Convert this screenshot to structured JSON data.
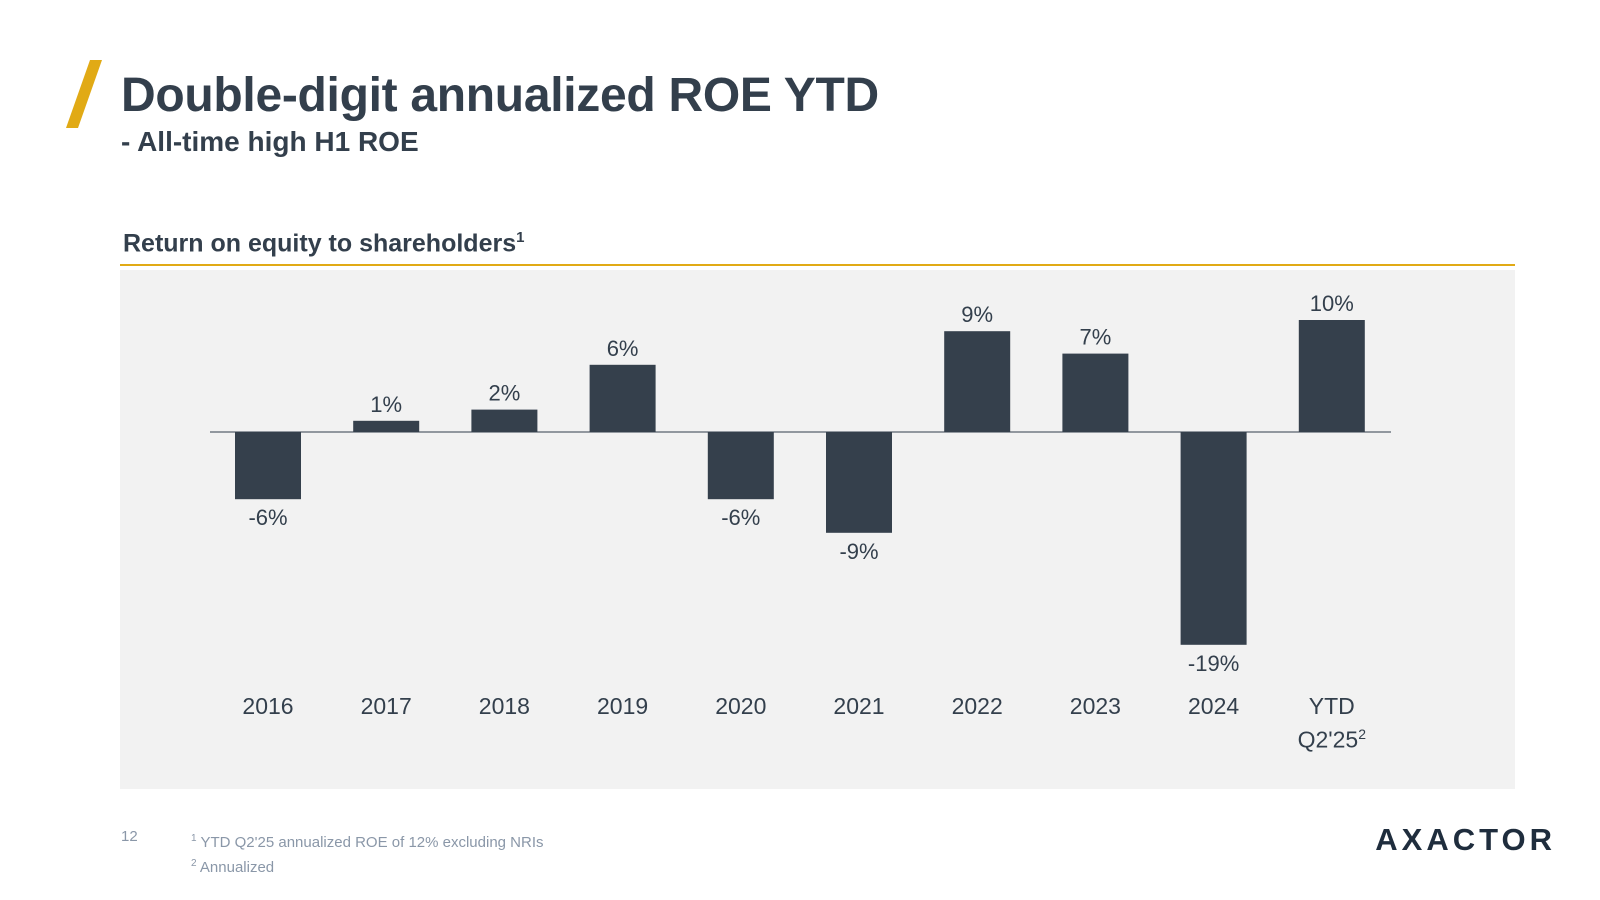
{
  "slide": {
    "title": "Double-digit annualized ROE YTD",
    "subtitle": "- All-time high H1 ROE",
    "page_number": "12",
    "logo_text": "AXACTOR",
    "accent_color": "#e1aa15",
    "bar_color": "#35404c"
  },
  "chart_heading": {
    "text": "Return on equity to shareholders",
    "sup": "1"
  },
  "footnotes": [
    {
      "num": "1",
      "text": "YTD Q2'25 annualized ROE of 12% excluding NRIs"
    },
    {
      "num": "2",
      "text": "Annualized"
    }
  ],
  "chart_data": {
    "type": "bar",
    "title": "Return on equity to shareholders",
    "categories": [
      "2016",
      "2017",
      "2018",
      "2019",
      "2020",
      "2021",
      "2022",
      "2023",
      "2024",
      "YTD Q2'25"
    ],
    "category_display": [
      {
        "line1": "2016"
      },
      {
        "line1": "2017"
      },
      {
        "line1": "2018"
      },
      {
        "line1": "2019"
      },
      {
        "line1": "2020"
      },
      {
        "line1": "2021"
      },
      {
        "line1": "2022"
      },
      {
        "line1": "2023"
      },
      {
        "line1": "2024"
      },
      {
        "line1": "YTD",
        "line2": "Q2'25",
        "sup": "2"
      }
    ],
    "values": [
      -6,
      1,
      2,
      6,
      -6,
      -9,
      9,
      7,
      -19,
      10
    ],
    "value_labels": [
      "-6%",
      "1%",
      "2%",
      "6%",
      "-6%",
      "-9%",
      "9%",
      "7%",
      "-19%",
      "10%"
    ],
    "unit": "%",
    "xlabel": "",
    "ylabel": "",
    "ylim": [
      -19,
      10
    ],
    "grid": false,
    "legend": "none"
  }
}
